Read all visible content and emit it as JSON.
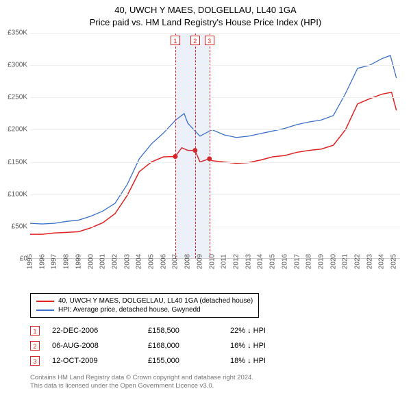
{
  "title": {
    "main": "40, UWCH Y MAES, DOLGELLAU, LL40 1GA",
    "sub": "Price paid vs. HM Land Registry's House Price Index (HPI)"
  },
  "chart": {
    "type": "line",
    "background_color": "#ffffff",
    "grid_color": "#eeeeee",
    "axis_label_color": "#555555",
    "axis_label_fontsize": 10,
    "ylim": [
      0,
      350000
    ],
    "ytick_step": 50000,
    "yticks": [
      "£0",
      "£50K",
      "£100K",
      "£150K",
      "£200K",
      "£250K",
      "£300K",
      "£350K"
    ],
    "xlim": [
      1995,
      2025.5
    ],
    "xticks": [
      1995,
      1996,
      1997,
      1998,
      1999,
      2000,
      2001,
      2002,
      2003,
      2004,
      2005,
      2006,
      2007,
      2008,
      2009,
      2010,
      2011,
      2012,
      2013,
      2014,
      2015,
      2016,
      2017,
      2018,
      2019,
      2020,
      2021,
      2022,
      2023,
      2024,
      2025
    ],
    "shade": {
      "start_year": 2006.97,
      "end_year": 2009.78,
      "color": "rgba(100,130,200,0.12)"
    },
    "series": [
      {
        "id": "property",
        "label": "40, UWCH Y MAES, DOLGELLAU, LL40 1GA (detached house)",
        "color": "#e02020",
        "line_width": 1.5,
        "points": [
          [
            1995,
            38000
          ],
          [
            1996,
            38000
          ],
          [
            1997,
            40000
          ],
          [
            1998,
            41000
          ],
          [
            1999,
            42000
          ],
          [
            2000,
            48000
          ],
          [
            2001,
            56000
          ],
          [
            2002,
            70000
          ],
          [
            2003,
            98000
          ],
          [
            2004,
            135000
          ],
          [
            2005,
            150000
          ],
          [
            2006,
            158000
          ],
          [
            2006.97,
            158500
          ],
          [
            2007.5,
            172000
          ],
          [
            2008,
            168000
          ],
          [
            2008.6,
            168000
          ],
          [
            2009,
            150000
          ],
          [
            2009.78,
            155000
          ],
          [
            2010,
            152000
          ],
          [
            2011,
            150000
          ],
          [
            2012,
            148000
          ],
          [
            2013,
            149000
          ],
          [
            2014,
            153000
          ],
          [
            2015,
            158000
          ],
          [
            2016,
            160000
          ],
          [
            2017,
            165000
          ],
          [
            2018,
            168000
          ],
          [
            2019,
            170000
          ],
          [
            2020,
            176000
          ],
          [
            2021,
            200000
          ],
          [
            2022,
            240000
          ],
          [
            2023,
            248000
          ],
          [
            2024,
            255000
          ],
          [
            2024.8,
            258000
          ],
          [
            2025.2,
            230000
          ]
        ]
      },
      {
        "id": "hpi",
        "label": "HPI: Average price, detached house, Gwynedd",
        "color": "#3b6fc9",
        "line_width": 1.3,
        "points": [
          [
            1995,
            55000
          ],
          [
            1996,
            54000
          ],
          [
            1997,
            55000
          ],
          [
            1998,
            58000
          ],
          [
            1999,
            60000
          ],
          [
            2000,
            66000
          ],
          [
            2001,
            74000
          ],
          [
            2002,
            86000
          ],
          [
            2003,
            115000
          ],
          [
            2004,
            155000
          ],
          [
            2005,
            178000
          ],
          [
            2006,
            195000
          ],
          [
            2007,
            215000
          ],
          [
            2007.7,
            225000
          ],
          [
            2008,
            210000
          ],
          [
            2009,
            190000
          ],
          [
            2010,
            200000
          ],
          [
            2011,
            192000
          ],
          [
            2012,
            188000
          ],
          [
            2013,
            190000
          ],
          [
            2014,
            194000
          ],
          [
            2015,
            198000
          ],
          [
            2016,
            202000
          ],
          [
            2017,
            208000
          ],
          [
            2018,
            212000
          ],
          [
            2019,
            215000
          ],
          [
            2020,
            222000
          ],
          [
            2021,
            256000
          ],
          [
            2022,
            295000
          ],
          [
            2023,
            300000
          ],
          [
            2024,
            310000
          ],
          [
            2024.7,
            315000
          ],
          [
            2025.2,
            280000
          ]
        ]
      }
    ],
    "sale_markers": [
      {
        "n": "1",
        "year": 2006.97,
        "price": 158500
      },
      {
        "n": "2",
        "year": 2008.6,
        "price": 168000
      },
      {
        "n": "3",
        "year": 2009.78,
        "price": 155000
      }
    ],
    "marker_color": "#e02020",
    "marker_dot_radius": 3.5
  },
  "legend": {
    "border_color": "#000000",
    "fontsize": 10
  },
  "sales": [
    {
      "n": "1",
      "date": "22-DEC-2006",
      "price": "£158,500",
      "diff": "22% ↓ HPI"
    },
    {
      "n": "2",
      "date": "06-AUG-2008",
      "price": "£168,000",
      "diff": "16% ↓ HPI"
    },
    {
      "n": "3",
      "date": "12-OCT-2009",
      "price": "£155,000",
      "diff": "18% ↓ HPI"
    }
  ],
  "footer": {
    "line1": "Contains HM Land Registry data © Crown copyright and database right 2024.",
    "line2": "This data is licensed under the Open Government Licence v3.0."
  }
}
